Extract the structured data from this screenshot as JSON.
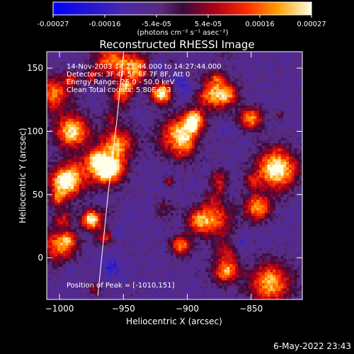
{
  "colorbar": {
    "ticks": [
      "-0.00027",
      "-0.00016",
      "-5.4e-05",
      "5.4e-05",
      "0.00016",
      "0.00027"
    ],
    "unit": "(photons cm⁻² s⁻¹ asec⁻²)"
  },
  "chart_data": {
    "type": "heatmap",
    "title": "Reconstructed RHESSI Image",
    "xlabel": "Heliocentric X (arcsec)",
    "ylabel": "Heliocentric Y (arcsec)",
    "xlim": [
      -1010,
      -810
    ],
    "ylim": [
      -33,
      163
    ],
    "xticks": [
      -1000,
      -950,
      -900,
      -850
    ],
    "yticks": [
      0,
      50,
      100,
      150
    ],
    "colorscale_range": [
      -0.00027,
      0.00027
    ],
    "limb_curve": [
      [
        -970,
        -30
      ],
      [
        -962,
        50
      ],
      [
        -955,
        110
      ],
      [
        -950,
        160
      ]
    ],
    "peak_position": [
      -1010,
      151
    ],
    "annotations": [
      "14-Nov-2003 14:21:44.000 to 14:27:44.000",
      "Detectors: 3F 4F 5F 6F 7F 8F, Att 0",
      "Energy Range: 25.0 - 50.0 keV",
      "Clean     Total counts: 5.80E+03",
      "Position of Peak = [-1010,151]"
    ]
  },
  "footer": {
    "date": "6-May-2022 23:43"
  },
  "colors": {
    "background": "#000000",
    "text": "#ffffff"
  }
}
